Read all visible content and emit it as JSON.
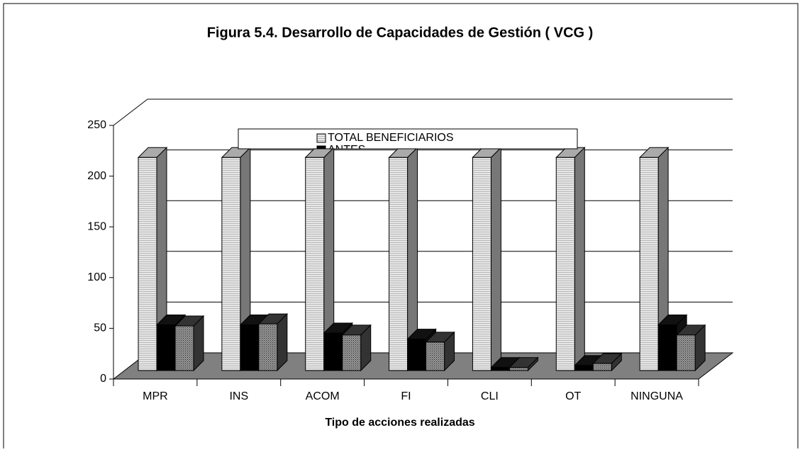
{
  "chart_data": {
    "type": "bar3d",
    "title": "Figura 5.4. Desarrollo de Capacidades de Gestión ( VCG )",
    "x_label": "Tipo de acciones realizadas",
    "categories": [
      "MPR",
      "INS",
      "ACOM",
      "FI",
      "CLI",
      "OT",
      "NINGUNA"
    ],
    "series": [
      {
        "name": "TOTAL BENEFICIARIOS",
        "color": "#d9d9d9",
        "values": [
          210,
          210,
          210,
          210,
          210,
          210,
          210
        ]
      },
      {
        "name": "ANTES",
        "color": "#000000",
        "values": [
          45,
          45,
          37,
          31,
          3,
          5,
          45
        ]
      },
      {
        "color": "#666666",
        "values": [
          44,
          46,
          35,
          28,
          3,
          7,
          35
        ]
      }
    ],
    "ylim": [
      0,
      250
    ],
    "yticks": [
      0,
      50,
      100,
      150,
      200,
      250
    ],
    "grid": true
  }
}
